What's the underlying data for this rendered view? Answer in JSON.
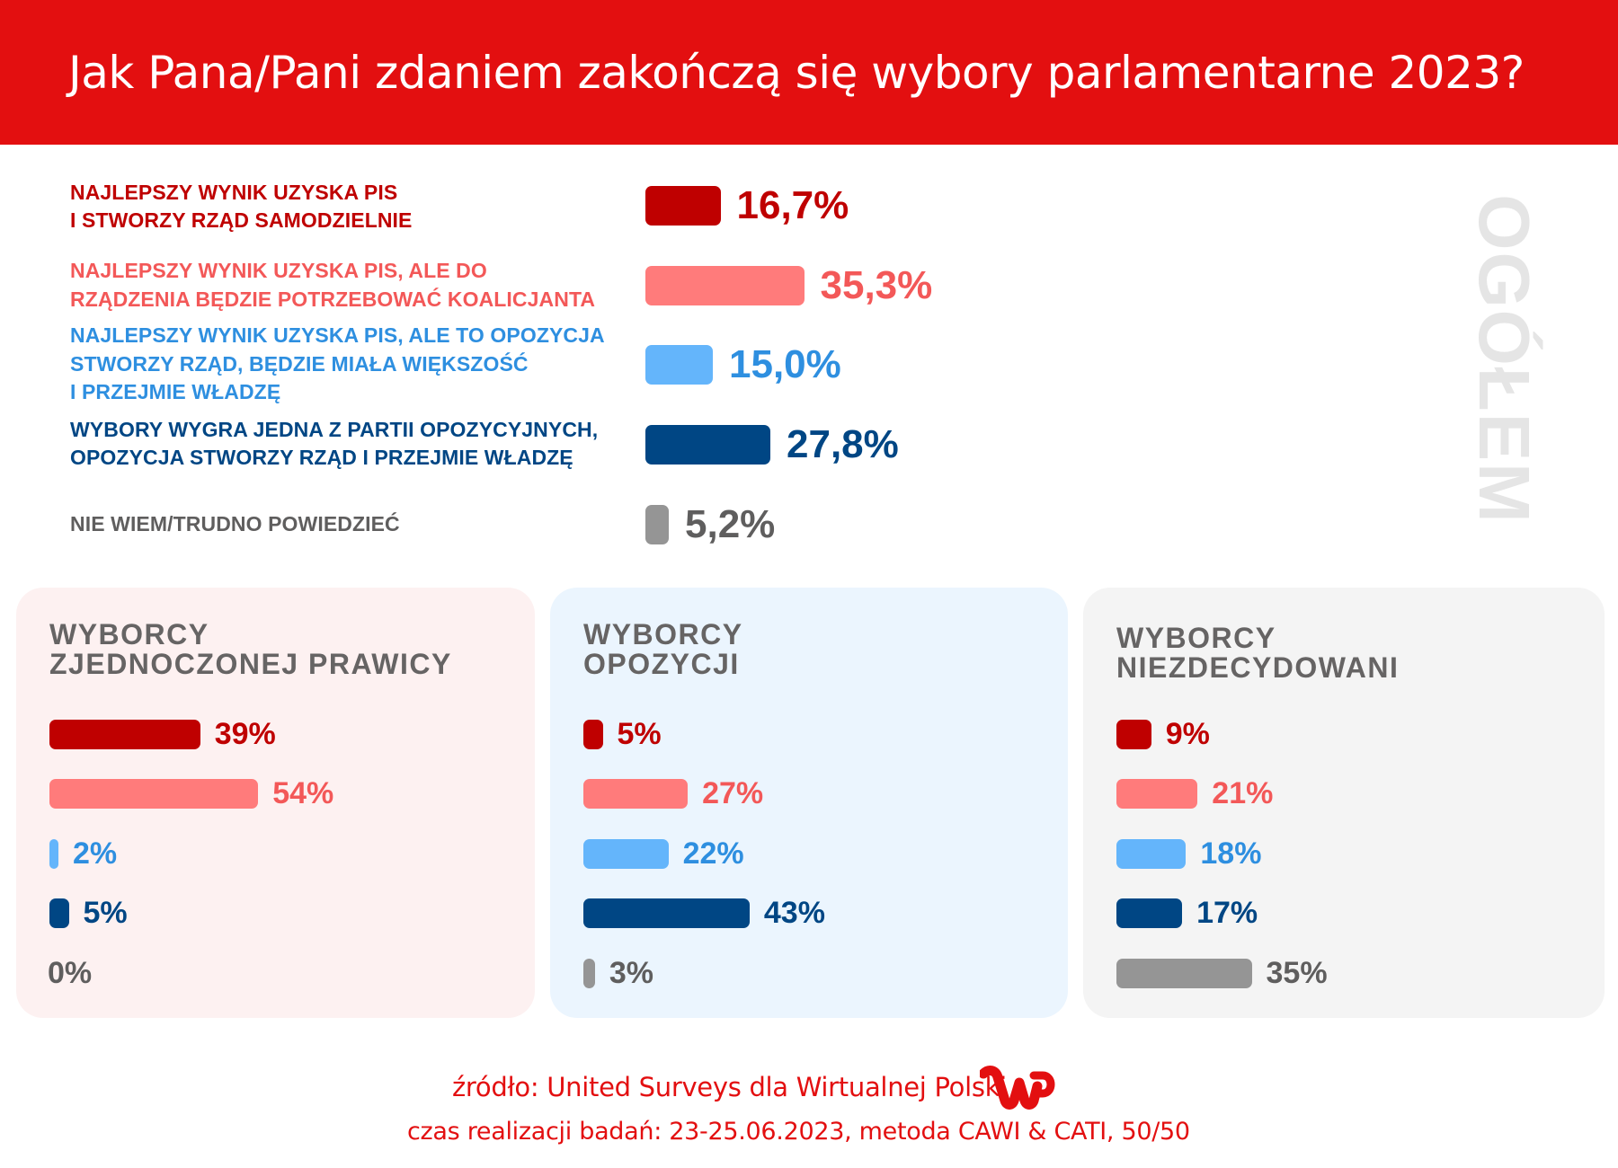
{
  "header": {
    "title": "Jak Pana/Pani zdaniem zakończą się wybory parlamentarne 2023?"
  },
  "overall": {
    "section_label": "OGÓŁEM"
  },
  "colors": {
    "header_bg": "#e30f10",
    "pis_alone": "#bf0000",
    "pis_coalition": "#ff7b7b",
    "pis_opposition_gov": "#64b5fb",
    "opposition_wins": "#004684",
    "dont_know": "#959595",
    "pis_alone_text": "#bf0000",
    "pis_coalition_text": "#f35858",
    "pis_opposition_gov_text": "#2e8fe0",
    "opposition_wins_text": "#004684",
    "dont_know_text": "#5f5e5e",
    "panel_right_bg": "#fdf1f1",
    "panel_opp_bg": "#ebf5fe",
    "panel_undecided_bg": "#f4f4f4"
  },
  "chart_data": [
    {
      "type": "bar",
      "title": "OGÓŁEM",
      "orientation": "horizontal",
      "unit": "%",
      "categories": [
        "NAJLEPSZY WYNIK UZYSKA PIS I STWORZY RZĄD SAMODZIELNIE",
        "NAJLEPSZY WYNIK UZYSKA PIS, ALE DO RZĄDZENIA BĘDZIE POTRZEBOWAĆ KOALICJANTA",
        "NAJLEPSZY WYNIK UZYSKA PIS, ALE TO OPOZYCJA STWORZY RZĄD, BĘDZIE MIAŁA WIĘKSZOŚĆ I PRZEJMIE WŁADZĘ",
        "WYBORY WYGRA JEDNA Z PARTII OPOZYCYJNYCH, OPOZYCJA STWORZY RZĄD I PRZEJMIE WŁADZĘ",
        "NIE WIEM/TRUDNO POWIEDZIEĆ"
      ],
      "label_lines": [
        [
          "NAJLEPSZY WYNIK UZYSKA PIS",
          "I STWORZY RZĄD SAMODZIELNIE"
        ],
        [
          "NAJLEPSZY WYNIK UZYSKA PIS, ALE DO",
          "RZĄDZENIA BĘDZIE POTRZEBOWAĆ KOALICJANTA"
        ],
        [
          "NAJLEPSZY WYNIK UZYSKA PIS, ALE TO OPOZYCJA",
          "STWORZY RZĄD, BĘDZIE MIAŁA WIĘKSZOŚĆ",
          "I PRZEJMIE WŁADZĘ"
        ],
        [
          "WYBORY WYGRA JEDNA Z PARTII OPOZYCYJNYCH,",
          "OPOZYCJA STWORZY RZĄD I PRZEJMIE WŁADZĘ"
        ],
        [
          "NIE WIEM/TRUDNO POWIEDZIEĆ"
        ]
      ],
      "values": [
        16.7,
        35.3,
        15.0,
        27.8,
        5.2
      ],
      "value_labels": [
        "16,7%",
        "35,3%",
        "15,0%",
        "27,8%",
        "5,2%"
      ],
      "series_colors": [
        "#bf0000",
        "#ff7b7b",
        "#64b5fb",
        "#004684",
        "#959595"
      ],
      "text_colors": [
        "#bf0000",
        "#f35858",
        "#2e8fe0",
        "#004684",
        "#5f5e5e"
      ],
      "xlim": [
        0,
        100
      ],
      "grid": false,
      "legend": "none"
    },
    {
      "type": "bar",
      "title": "WYBORCY ZJEDNOCZONEJ PRAWICY",
      "title_lines": [
        "WYBORCY",
        "ZJEDNOCZONEJ PRAWICY"
      ],
      "orientation": "horizontal",
      "unit": "%",
      "values": [
        39,
        54,
        2,
        5,
        0
      ],
      "value_labels": [
        "39%",
        "54%",
        "2%",
        "5%",
        "0%"
      ],
      "xlim": [
        0,
        100
      ],
      "grid": false
    },
    {
      "type": "bar",
      "title": "WYBORCY OPOZYCJI",
      "title_lines": [
        "WYBORCY",
        "OPOZYCJI"
      ],
      "orientation": "horizontal",
      "unit": "%",
      "values": [
        5,
        27,
        22,
        43,
        3
      ],
      "value_labels": [
        "5%",
        "27%",
        "22%",
        "43%",
        "3%"
      ],
      "xlim": [
        0,
        100
      ],
      "grid": false
    },
    {
      "type": "bar",
      "title": "WYBORCY NIEZDECYDOWANI",
      "title_lines": [
        "WYBORCY",
        "NIEZDECYDOWANI"
      ],
      "orientation": "horizontal",
      "unit": "%",
      "values": [
        9,
        21,
        18,
        17,
        35
      ],
      "value_labels": [
        "9%",
        "21%",
        "18%",
        "17%",
        "35%"
      ],
      "xlim": [
        0,
        100
      ],
      "grid": false
    }
  ],
  "footer": {
    "source": "źródło: United Surveys dla Wirtualnej Polski",
    "fieldwork": "czas realizacji badań: 23-25.06.2023, metoda CAWI & CATI, 50/50",
    "logo_icon": "wp-logo-icon"
  }
}
